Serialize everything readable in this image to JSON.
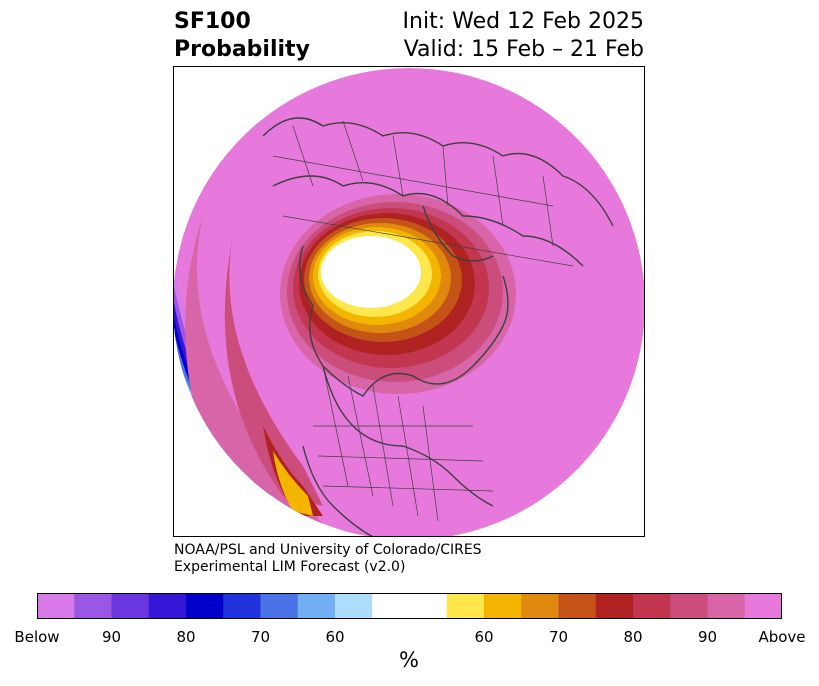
{
  "header": {
    "variable": "SF100",
    "product": "Probability",
    "init": "Init: Wed 12 Feb 2025",
    "valid": "Valid: 15 Feb – 21 Feb"
  },
  "credit": {
    "line1": "NOAA/PSL and University of Colorado/CIRES",
    "line2": "Experimental LIM Forecast (v2.0)"
  },
  "colorbar": {
    "units": "%",
    "colors": [
      "#d87ae8",
      "#9a57e3",
      "#6a36df",
      "#3617d8",
      "#0000cc",
      "#2233dd",
      "#4a73e8",
      "#73b0f3",
      "#aedcfc",
      "#ffffff",
      "#ffffff",
      "#fde74a",
      "#f4b500",
      "#df8a0e",
      "#c45318",
      "#b02222",
      "#c2364f",
      "#cb4d7b",
      "#d765a7",
      "#e879dc"
    ],
    "tick_labels": [
      "Below",
      "90",
      "80",
      "70",
      "60",
      "60",
      "70",
      "80",
      "90",
      "Above"
    ]
  },
  "map": {
    "projection": "north-polar-stereographic",
    "base_color": "#e879dc",
    "coastline_color": "#3f3f3f"
  }
}
